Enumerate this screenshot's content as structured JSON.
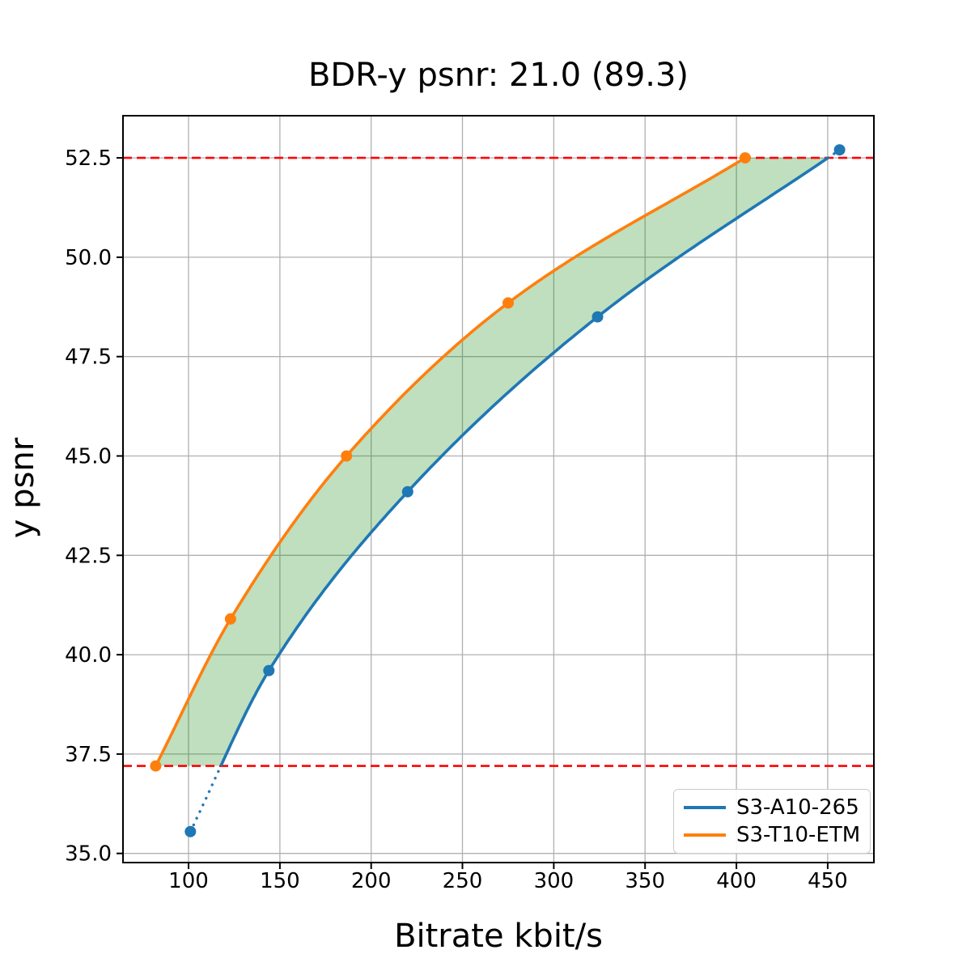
{
  "chart_data": {
    "type": "line",
    "title": "BDR-y psnr: 21.0 (89.3)",
    "xlabel": "Bitrate kbit/s",
    "ylabel": "y psnr",
    "xlim": [
      64.1,
      475.3
    ],
    "ylim": [
      34.77,
      53.56
    ],
    "xticks": [
      100,
      150,
      200,
      250,
      300,
      350,
      400,
      450
    ],
    "xticklabels": [
      "100",
      "150",
      "200",
      "250",
      "300",
      "350",
      "400",
      "450"
    ],
    "yticks": [
      35.0,
      37.5,
      40.0,
      42.5,
      45.0,
      47.5,
      50.0,
      52.5
    ],
    "yticklabels": [
      "35.0",
      "37.5",
      "40.0",
      "42.5",
      "45.0",
      "47.5",
      "50.0",
      "52.5"
    ],
    "grid": true,
    "grid_color": "#b0b0b0",
    "legend_position": "lower right",
    "series": [
      {
        "name": "S3-A10-265",
        "color": "#1f77b4",
        "marker": "circle",
        "x": [
          101,
          144,
          220,
          324,
          456.5
        ],
        "y": [
          35.55,
          39.6,
          44.1,
          48.5,
          52.7
        ]
      },
      {
        "name": "S3-T10-ETM",
        "color": "#ff7f0e",
        "marker": "circle",
        "x": [
          82,
          123,
          186.5,
          275,
          404.8
        ],
        "y": [
          37.2,
          40.9,
          45.0,
          48.85,
          52.5
        ]
      }
    ],
    "overlap_band": [
      37.2,
      52.5
    ],
    "hlines": [
      {
        "y": 52.5,
        "color": "#ff0000",
        "style": "dashed"
      },
      {
        "y": 37.2,
        "color": "#ff0000",
        "style": "dashed"
      }
    ],
    "shaded_region": {
      "between": [
        "S3-T10-ETM",
        "S3-A10-265"
      ],
      "y_range": [
        37.2,
        52.5
      ],
      "color": "rgba(0,128,0,0.25)"
    }
  }
}
